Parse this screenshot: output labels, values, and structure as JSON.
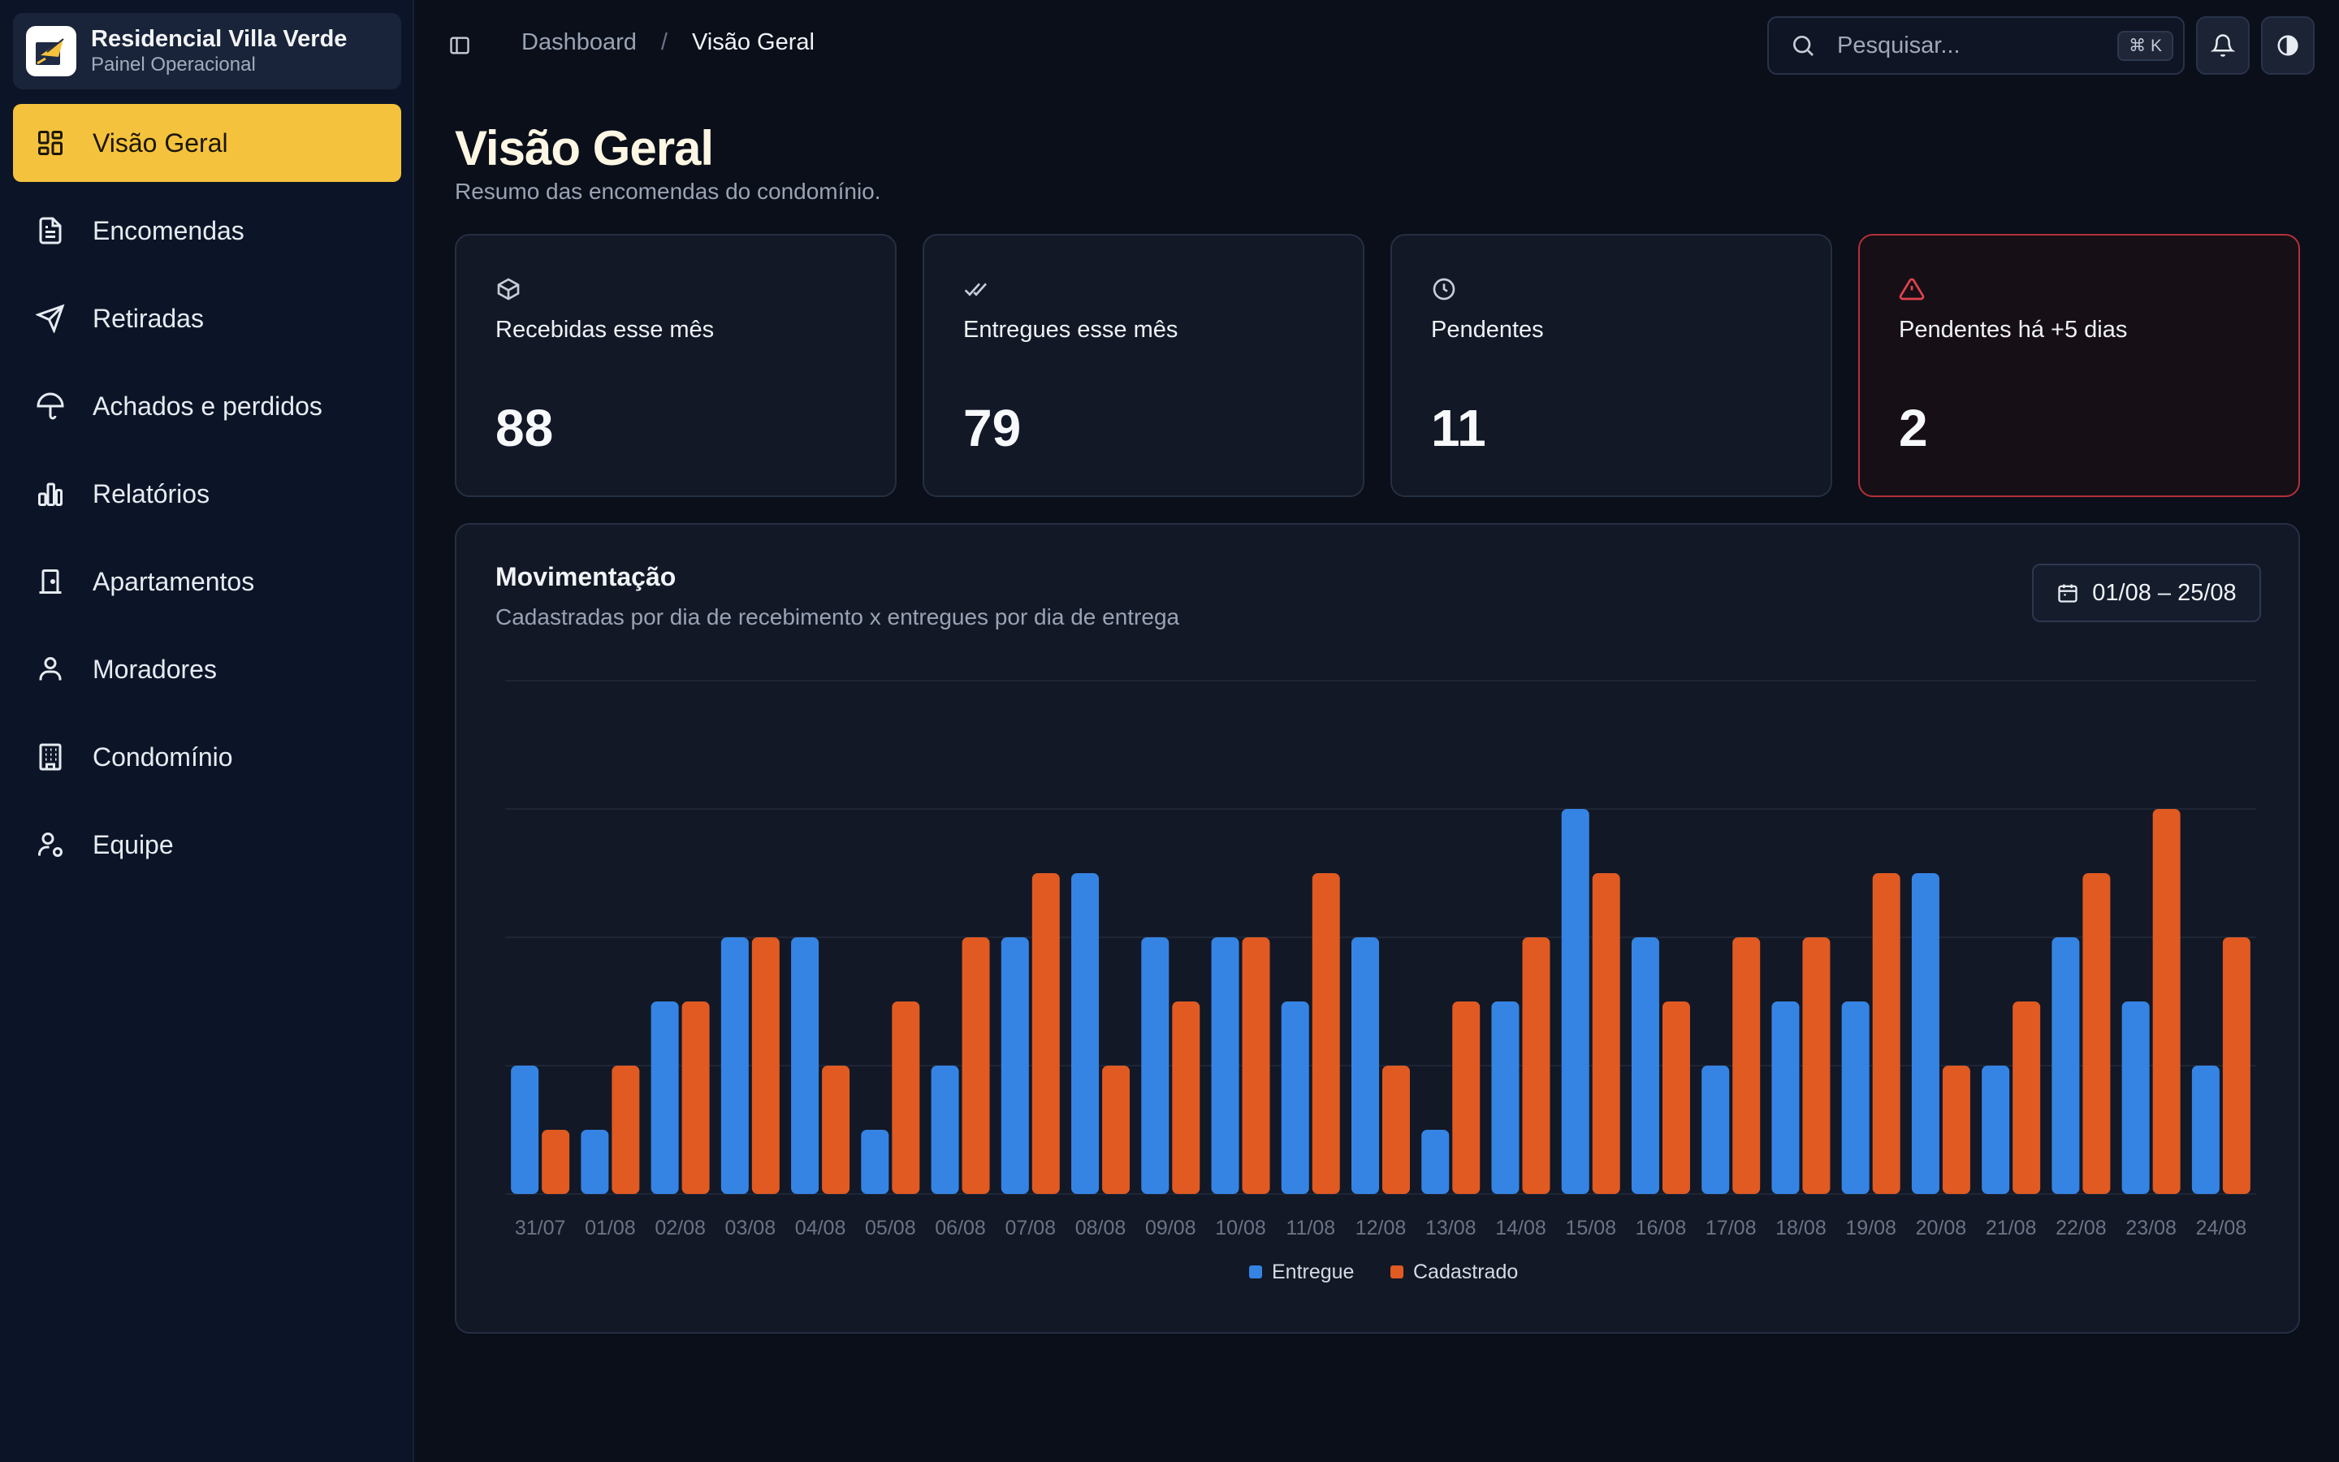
{
  "brand": {
    "name": "Residencial Villa Verde",
    "subtitle": "Painel Operacional"
  },
  "nav": [
    {
      "label": "Visão Geral",
      "icon": "dashboard-grid-icon",
      "active": true
    },
    {
      "label": "Encomendas",
      "icon": "document-icon"
    },
    {
      "label": "Retiradas",
      "icon": "send-icon"
    },
    {
      "label": "Achados e perdidos",
      "icon": "umbrella-icon"
    },
    {
      "label": "Relatórios",
      "icon": "bar-chart-icon"
    },
    {
      "label": "Apartamentos",
      "icon": "door-icon"
    },
    {
      "label": "Moradores",
      "icon": "user-icon"
    },
    {
      "label": "Condomínio",
      "icon": "building-icon"
    },
    {
      "label": "Equipe",
      "icon": "user-cog-icon"
    }
  ],
  "header": {
    "breadcrumb": [
      "Dashboard",
      "Visão Geral"
    ],
    "search_placeholder": "Pesquisar...",
    "shortcut": "⌘ K"
  },
  "page": {
    "title": "Visão Geral",
    "subtitle": "Resumo das encomendas do condomínio."
  },
  "cards": [
    {
      "label": "Recebidas esse mês",
      "value": "88",
      "icon": "package-icon"
    },
    {
      "label": "Entregues esse mês",
      "value": "79",
      "icon": "double-check-icon"
    },
    {
      "label": "Pendentes",
      "value": "11",
      "icon": "clock-icon"
    },
    {
      "label": "Pendentes há +5 dias",
      "value": "2",
      "icon": "alert-triangle-icon"
    }
  ],
  "chart_panel": {
    "title": "Movimentação",
    "subtitle": "Cadastradas por dia de recebimento x entregues por dia de entrega",
    "date_range": "01/08 – 25/08"
  },
  "colors": {
    "accent": "#f4c23c",
    "entregue": "#3584e4",
    "cadastrado": "#e05a22",
    "alert": "#e0444e"
  },
  "chart_data": {
    "type": "bar",
    "categories": [
      "31/07",
      "01/08",
      "02/08",
      "03/08",
      "04/08",
      "05/08",
      "06/08",
      "07/08",
      "08/08",
      "09/08",
      "10/08",
      "11/08",
      "12/08",
      "13/08",
      "14/08",
      "15/08",
      "16/08",
      "17/08",
      "18/08",
      "19/08",
      "20/08",
      "21/08",
      "22/08",
      "23/08",
      "24/08"
    ],
    "series": [
      {
        "name": "Entregue",
        "values": [
          2,
          1,
          3,
          4,
          4,
          1,
          2,
          4,
          5,
          4,
          4,
          3,
          4,
          1,
          3,
          6,
          4,
          2,
          3,
          3,
          5,
          2,
          4,
          3,
          2
        ]
      },
      {
        "name": "Cadastrado",
        "values": [
          1,
          2,
          3,
          4,
          2,
          3,
          4,
          5,
          2,
          3,
          4,
          5,
          2,
          3,
          4,
          5,
          3,
          4,
          4,
          5,
          2,
          3,
          5,
          6,
          4
        ]
      }
    ],
    "ylim": [
      0,
      8
    ],
    "grid": true,
    "legend": "bottom-center"
  }
}
